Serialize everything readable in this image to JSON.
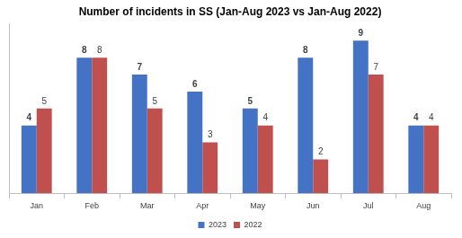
{
  "chart_data": {
    "type": "bar",
    "title": "Number of incidents in SS (Jan-Aug 2023 vs Jan-Aug 2022)",
    "categories": [
      "Jan",
      "Feb",
      "Mar",
      "Apr",
      "May",
      "Jun",
      "Jul",
      "Aug"
    ],
    "series": [
      {
        "name": "2023",
        "color": "#4472c4",
        "values": [
          4,
          8,
          7,
          6,
          5,
          8,
          9,
          4
        ]
      },
      {
        "name": "2022",
        "color": "#c0504d",
        "values": [
          5,
          8,
          5,
          3,
          4,
          2,
          7,
          4
        ]
      }
    ],
    "ylim": [
      0,
      10
    ],
    "grid": false,
    "legend": "bottom",
    "data_labels": true,
    "tick_labels": "x"
  }
}
